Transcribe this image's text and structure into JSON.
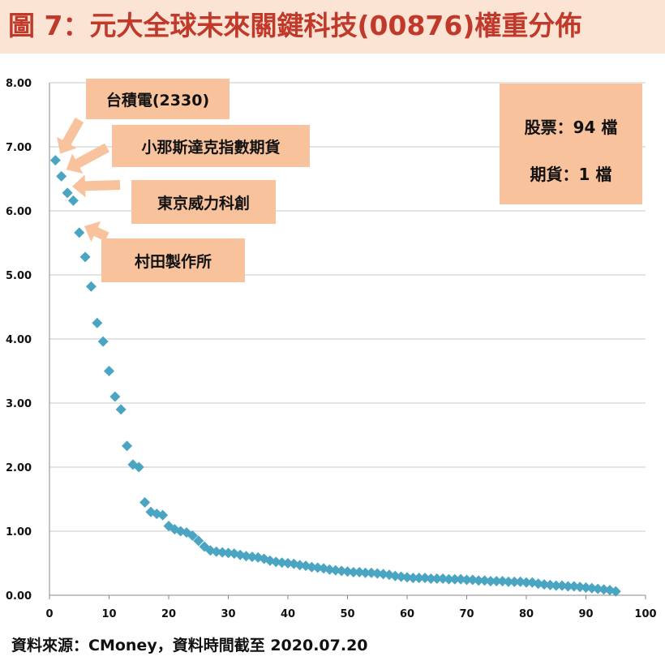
{
  "title": "圖 7：元大全球未來關鍵科技(00876)權重分佈",
  "source": "資料來源：CMoney，資料時間截至 2020.07.20",
  "annotations": [
    {
      "label": "台積電(2330)",
      "points_to_rank": 1
    },
    {
      "label": "小那斯達克指數期貨",
      "points_to_rank": 2
    },
    {
      "label": "東京威力科創",
      "points_to_rank": 3
    },
    {
      "label": "村田製作所",
      "points_to_rank": 5
    }
  ],
  "summary_box": {
    "stocks": "股票：94 檔",
    "futures": "期貨：1 檔"
  },
  "colors": {
    "title": "#c0392b",
    "title_band": "#fbe4d3",
    "callout": "#f8c39c",
    "marker": "#4aa5c2",
    "grid": "#c8c8c8"
  },
  "chart_data": {
    "type": "scatter",
    "marker": "diamond",
    "xlim": [
      0,
      100
    ],
    "ylim": [
      0,
      8
    ],
    "x_ticks": [
      0,
      10,
      20,
      30,
      40,
      50,
      60,
      70,
      80,
      90,
      100
    ],
    "y_ticks": [
      "0.00",
      "1.00",
      "2.00",
      "3.00",
      "4.00",
      "5.00",
      "6.00",
      "7.00",
      "8.00"
    ],
    "grid": "horizontal",
    "x": [
      1,
      2,
      3,
      4,
      5,
      6,
      7,
      8,
      9,
      10,
      11,
      12,
      13,
      14,
      15,
      16,
      17,
      18,
      19,
      20,
      21,
      22,
      23,
      24,
      25,
      26,
      27,
      28,
      29,
      30,
      31,
      32,
      33,
      34,
      35,
      36,
      37,
      38,
      39,
      40,
      41,
      42,
      43,
      44,
      45,
      46,
      47,
      48,
      49,
      50,
      51,
      52,
      53,
      54,
      55,
      56,
      57,
      58,
      59,
      60,
      61,
      62,
      63,
      64,
      65,
      66,
      67,
      68,
      69,
      70,
      71,
      72,
      73,
      74,
      75,
      76,
      77,
      78,
      79,
      80,
      81,
      82,
      83,
      84,
      85,
      86,
      87,
      88,
      89,
      90,
      91,
      92,
      93,
      94,
      95
    ],
    "y": [
      6.79,
      6.54,
      6.28,
      6.16,
      5.66,
      5.28,
      4.82,
      4.25,
      3.96,
      3.5,
      3.1,
      2.9,
      2.33,
      2.04,
      2.0,
      1.45,
      1.3,
      1.27,
      1.25,
      1.08,
      1.03,
      1.0,
      0.98,
      0.93,
      0.85,
      0.76,
      0.7,
      0.68,
      0.67,
      0.66,
      0.65,
      0.63,
      0.61,
      0.6,
      0.59,
      0.57,
      0.54,
      0.52,
      0.51,
      0.5,
      0.49,
      0.47,
      0.46,
      0.44,
      0.43,
      0.42,
      0.4,
      0.39,
      0.38,
      0.37,
      0.36,
      0.36,
      0.35,
      0.35,
      0.34,
      0.33,
      0.32,
      0.3,
      0.29,
      0.28,
      0.27,
      0.27,
      0.27,
      0.26,
      0.26,
      0.26,
      0.25,
      0.25,
      0.25,
      0.24,
      0.24,
      0.23,
      0.23,
      0.22,
      0.22,
      0.22,
      0.21,
      0.21,
      0.21,
      0.2,
      0.2,
      0.18,
      0.17,
      0.16,
      0.15,
      0.15,
      0.14,
      0.14,
      0.13,
      0.12,
      0.11,
      0.1,
      0.09,
      0.08,
      0.06
    ]
  }
}
